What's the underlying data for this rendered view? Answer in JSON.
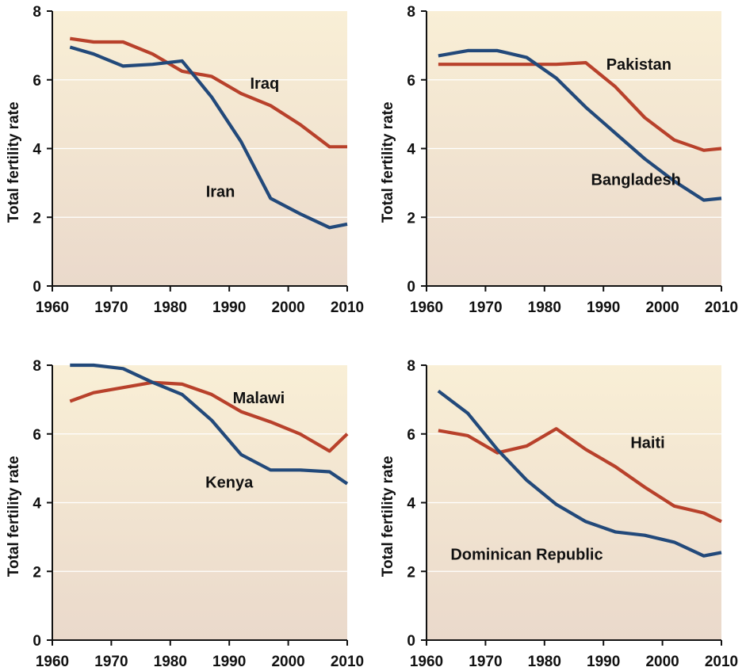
{
  "colors": {
    "series_red": "#b8412b",
    "series_blue": "#22497a",
    "bg_top": "#f9efd6",
    "bg_bottom": "#ead9cb"
  },
  "chart_data": [
    {
      "type": "line",
      "ylabel": "Total fertility rate",
      "xlim": [
        1960,
        2010
      ],
      "ylim": [
        0,
        8
      ],
      "xticks": [
        "1960",
        "1970",
        "1980",
        "1990",
        "2000",
        "2010"
      ],
      "yticks": [
        "0",
        "2",
        "4",
        "6",
        "8"
      ],
      "grid": true,
      "series": [
        {
          "name": "Iraq",
          "color": "red",
          "label_pos": [
            1996,
            5.9
          ],
          "x": [
            1963,
            1967,
            1972,
            1977,
            1982,
            1987,
            1992,
            1997,
            2002,
            2007,
            2010
          ],
          "y": [
            7.2,
            7.1,
            7.1,
            6.75,
            6.25,
            6.1,
            5.6,
            5.25,
            4.7,
            4.05,
            4.05
          ]
        },
        {
          "name": "Iran",
          "color": "blue",
          "label_pos": [
            1988.5,
            2.75
          ],
          "x": [
            1963,
            1967,
            1972,
            1977,
            1982,
            1987,
            1992,
            1997,
            2002,
            2007,
            2010
          ],
          "y": [
            6.95,
            6.75,
            6.4,
            6.45,
            6.55,
            5.5,
            4.2,
            2.55,
            2.1,
            1.7,
            1.8
          ]
        }
      ]
    },
    {
      "type": "line",
      "ylabel": "Total fertility rate",
      "xlim": [
        1960,
        2010
      ],
      "ylim": [
        0,
        8
      ],
      "xticks": [
        "1960",
        "1970",
        "1980",
        "1990",
        "2000",
        "2010"
      ],
      "yticks": [
        "0",
        "2",
        "4",
        "6",
        "8"
      ],
      "grid": true,
      "series": [
        {
          "name": "Pakistan",
          "color": "red",
          "label_pos": [
            1996,
            6.45
          ],
          "x": [
            1962,
            1967,
            1972,
            1977,
            1982,
            1987,
            1992,
            1997,
            2002,
            2007,
            2010
          ],
          "y": [
            6.45,
            6.45,
            6.45,
            6.45,
            6.45,
            6.5,
            5.8,
            4.9,
            4.25,
            3.95,
            4.0
          ]
        },
        {
          "name": "Bangladesh",
          "color": "blue",
          "label_pos": [
            1995.5,
            3.1
          ],
          "x": [
            1962,
            1967,
            1972,
            1977,
            1982,
            1987,
            1992,
            1997,
            2002,
            2007,
            2010
          ],
          "y": [
            6.7,
            6.85,
            6.85,
            6.65,
            6.05,
            5.2,
            4.45,
            3.7,
            3.05,
            2.5,
            2.55
          ]
        }
      ]
    },
    {
      "type": "line",
      "ylabel": "Total fertility rate",
      "xlim": [
        1960,
        2010
      ],
      "ylim": [
        0,
        8
      ],
      "xticks": [
        "1960",
        "1970",
        "1980",
        "1990",
        "2000",
        "2010"
      ],
      "yticks": [
        "0",
        "2",
        "4",
        "6",
        "8"
      ],
      "grid": true,
      "series": [
        {
          "name": "Malawi",
          "color": "red",
          "label_pos": [
            1995,
            7.05
          ],
          "x": [
            1963,
            1967,
            1972,
            1977,
            1982,
            1987,
            1992,
            1997,
            2002,
            2007,
            2010
          ],
          "y": [
            6.95,
            7.2,
            7.35,
            7.5,
            7.45,
            7.15,
            6.65,
            6.35,
            6.0,
            5.5,
            6.0
          ]
        },
        {
          "name": "Kenya",
          "color": "blue",
          "label_pos": [
            1990,
            4.6
          ],
          "x": [
            1963,
            1967,
            1972,
            1977,
            1982,
            1987,
            1992,
            1997,
            2002,
            2007,
            2010
          ],
          "y": [
            8.0,
            8.0,
            7.9,
            7.5,
            7.15,
            6.4,
            5.4,
            4.95,
            4.95,
            4.9,
            4.55
          ]
        }
      ]
    },
    {
      "type": "line",
      "ylabel": "Total fertility rate",
      "xlim": [
        1960,
        2010
      ],
      "ylim": [
        0,
        8
      ],
      "xticks": [
        "1960",
        "1970",
        "1980",
        "1990",
        "2000",
        "2010"
      ],
      "yticks": [
        "0",
        "2",
        "4",
        "6",
        "8"
      ],
      "grid": true,
      "series": [
        {
          "name": "Haiti",
          "color": "red",
          "label_pos": [
            1997.5,
            5.75
          ],
          "x": [
            1962,
            1967,
            1972,
            1977,
            1982,
            1987,
            1992,
            1997,
            2002,
            2007,
            2010
          ],
          "y": [
            6.1,
            5.95,
            5.45,
            5.65,
            6.15,
            5.55,
            5.05,
            4.45,
            3.9,
            3.7,
            3.45
          ]
        },
        {
          "name": "Dominican Republic",
          "color": "blue",
          "label_pos": [
            1977,
            2.5
          ],
          "x": [
            1962,
            1967,
            1972,
            1977,
            1982,
            1987,
            1992,
            1997,
            2002,
            2007,
            2010
          ],
          "y": [
            7.25,
            6.6,
            5.55,
            4.65,
            3.95,
            3.45,
            3.15,
            3.05,
            2.85,
            2.45,
            2.55
          ]
        }
      ]
    }
  ]
}
